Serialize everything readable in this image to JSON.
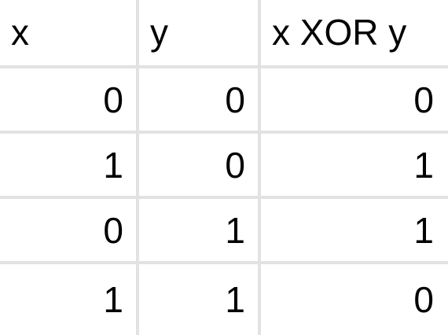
{
  "table": {
    "headers": [
      "x",
      "y",
      "x XOR y"
    ],
    "rows": [
      [
        "0",
        "0",
        "0"
      ],
      [
        "1",
        "0",
        "1"
      ],
      [
        "0",
        "1",
        "1"
      ],
      [
        "1",
        "1",
        "0"
      ]
    ]
  },
  "colors": {
    "gridline": "#e2e2e2",
    "text": "#000000",
    "background": "#ffffff"
  }
}
